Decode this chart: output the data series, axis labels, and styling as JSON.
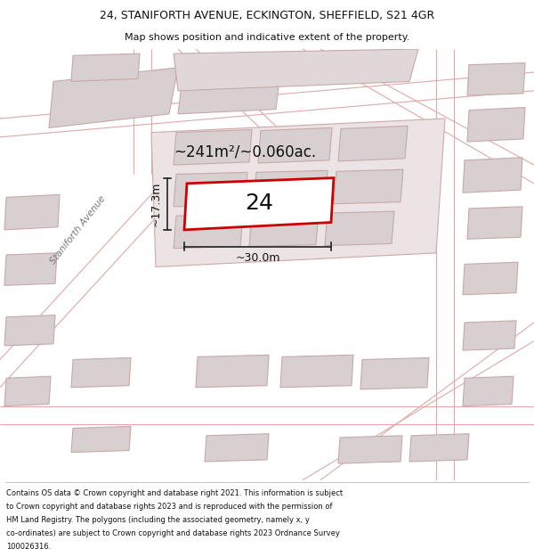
{
  "title_line1": "24, STANIFORTH AVENUE, ECKINGTON, SHEFFIELD, S21 4GR",
  "title_line2": "Map shows position and indicative extent of the property.",
  "footer_text": "Contains OS data © Crown copyright and database right 2021. This information is subject to Crown copyright and database rights 2023 and is reproduced with the permission of HM Land Registry. The polygons (including the associated geometry, namely x, y co-ordinates) are subject to Crown copyright and database rights 2023 Ordnance Survey 100026316.",
  "area_label": "~241m²/~0.060ac.",
  "house_number": "24",
  "width_label": "~30.0m",
  "height_label": "~17.3m",
  "street_label": "Staniforth Avenue",
  "map_bg": "#f5eeee",
  "plot_color": "#cc0000",
  "building_fc": "#d8d0d0",
  "building_ec": "#c8a8a8",
  "road_color": "#e0a8a8",
  "fig_width": 6.0,
  "fig_height": 6.25,
  "title_fontsize": 9,
  "subtitle_fontsize": 8,
  "footer_fontsize": 6.0
}
